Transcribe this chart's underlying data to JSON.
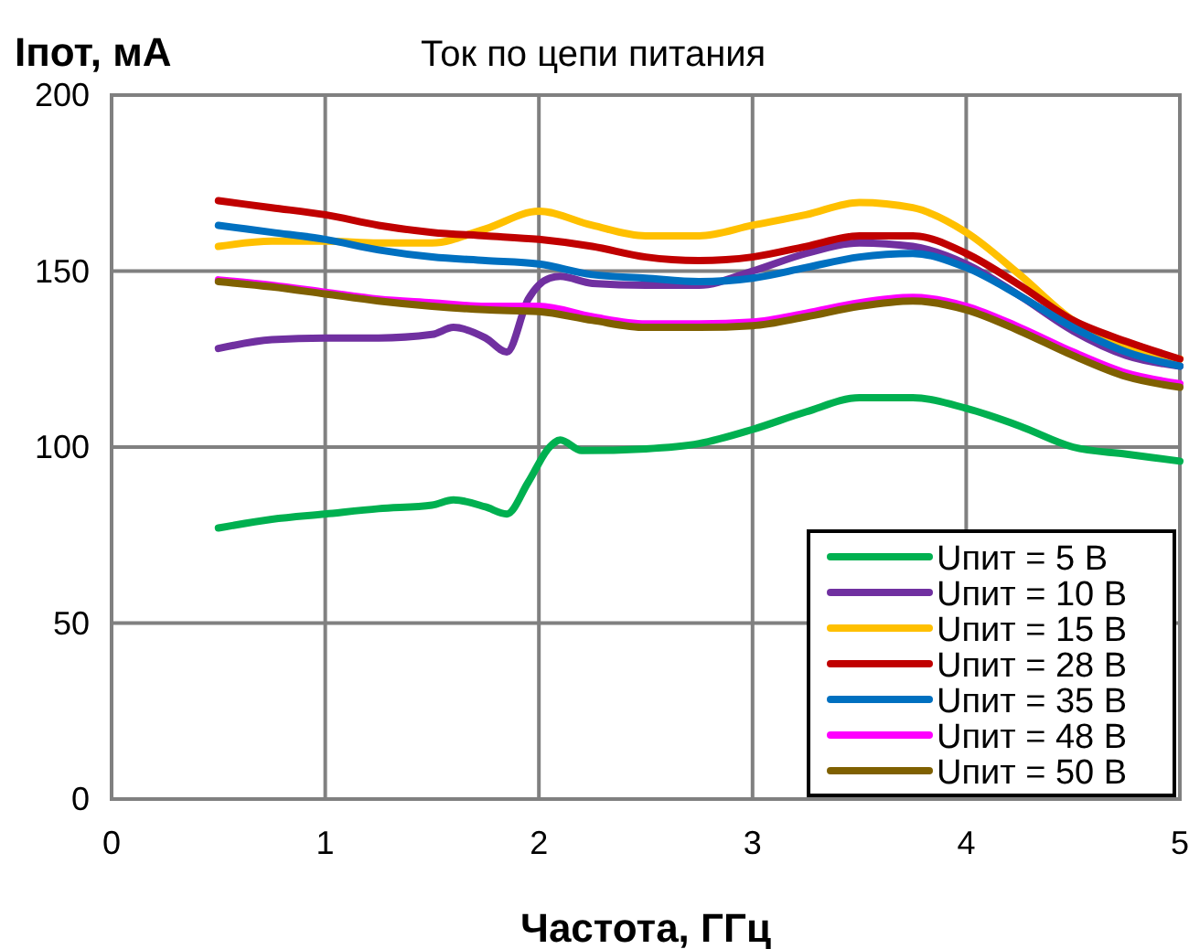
{
  "chart_data": {
    "type": "line",
    "title": "Ток по цепи питания",
    "ylabel": "Iпот, мА",
    "xlabel": "Частота, ГГц",
    "xlim": [
      0,
      5
    ],
    "ylim": [
      0,
      200
    ],
    "xticks": [
      0,
      1,
      2,
      3,
      4,
      5
    ],
    "yticks": [
      0,
      50,
      100,
      150,
      200
    ],
    "grid": true,
    "legend": "bottom right",
    "marker": "none",
    "line_style": "solid",
    "series": [
      {
        "name": "Uпит = 5 В",
        "color": "#00b050",
        "x": [
          0.5,
          0.75,
          1,
          1.25,
          1.5,
          1.6,
          1.75,
          1.85,
          1.95,
          2.05,
          2.1,
          2.2,
          2.5,
          2.75,
          3,
          3.25,
          3.5,
          3.75,
          4,
          4.25,
          4.5,
          4.75,
          5
        ],
        "values": [
          77,
          79.5,
          81,
          82.5,
          83.5,
          85,
          83,
          81,
          90,
          100,
          102,
          99,
          99.5,
          101,
          105,
          110,
          114,
          114,
          111,
          106,
          100,
          98,
          96
        ]
      },
      {
        "name": "Uпит = 10 В",
        "color": "#7030a0",
        "x": [
          0.5,
          0.75,
          1,
          1.25,
          1.5,
          1.6,
          1.75,
          1.85,
          1.95,
          2.05,
          2.1,
          2.25,
          2.5,
          2.75,
          3,
          3.25,
          3.5,
          3.75,
          4,
          4.25,
          4.5,
          4.75,
          5
        ],
        "values": [
          128,
          130.5,
          131,
          131,
          132,
          134,
          131,
          127,
          142,
          148,
          148.5,
          146.5,
          146,
          146,
          150,
          155,
          158,
          157,
          152,
          143,
          133,
          126,
          123
        ]
      },
      {
        "name": "Uпит = 15 В",
        "color": "#ffc000",
        "x": [
          0.5,
          0.75,
          1,
          1.25,
          1.5,
          1.75,
          2,
          2.25,
          2.5,
          2.75,
          3,
          3.25,
          3.5,
          3.75,
          4,
          4.25,
          4.5,
          4.75,
          5
        ],
        "values": [
          157,
          158.5,
          158.5,
          158,
          158,
          162,
          167,
          163,
          160,
          160,
          163,
          166,
          169.5,
          168,
          161,
          149,
          136,
          129,
          125
        ]
      },
      {
        "name": "Uпит = 28 В",
        "color": "#c00000",
        "x": [
          0.5,
          0.75,
          1,
          1.25,
          1.5,
          1.75,
          2,
          2.25,
          2.5,
          2.75,
          3,
          3.25,
          3.5,
          3.75,
          4,
          4.25,
          4.5,
          4.75,
          5
        ],
        "values": [
          170,
          168,
          166,
          163,
          161,
          160,
          159,
          157,
          154,
          153,
          154,
          157,
          160,
          160,
          155,
          146,
          136,
          130,
          125
        ]
      },
      {
        "name": "Uпит = 35 В",
        "color": "#0070c0",
        "x": [
          0.5,
          0.75,
          1,
          1.25,
          1.5,
          1.75,
          2,
          2.25,
          2.5,
          2.75,
          3,
          3.25,
          3.5,
          3.75,
          4,
          4.25,
          4.5,
          4.75,
          5
        ],
        "values": [
          163,
          161,
          159,
          156,
          154,
          153,
          152,
          149,
          148,
          147,
          148,
          151,
          154,
          155,
          151,
          143,
          134,
          127,
          123
        ]
      },
      {
        "name": "Uпит = 48 В",
        "color": "#ff00ff",
        "x": [
          0.5,
          0.75,
          1,
          1.25,
          1.5,
          1.75,
          2,
          2.25,
          2.5,
          2.75,
          3,
          3.25,
          3.5,
          3.75,
          4,
          4.25,
          4.5,
          4.75,
          5
        ],
        "values": [
          147.5,
          146,
          144,
          142,
          141,
          140,
          140,
          137,
          135,
          135,
          135.5,
          138,
          141,
          142.5,
          140,
          134,
          127,
          121,
          118
        ]
      },
      {
        "name": "Uпит = 50 В",
        "color": "#7f6000",
        "x": [
          0.5,
          0.75,
          1,
          1.25,
          1.5,
          1.75,
          2,
          2.25,
          2.5,
          2.75,
          3,
          3.25,
          3.5,
          3.75,
          4,
          4.25,
          4.5,
          4.75,
          5
        ],
        "values": [
          147,
          145.5,
          143.5,
          141.5,
          140,
          139,
          138.5,
          136,
          134,
          134,
          134.5,
          137,
          140,
          141.5,
          139,
          133,
          126,
          120,
          117
        ]
      }
    ]
  }
}
